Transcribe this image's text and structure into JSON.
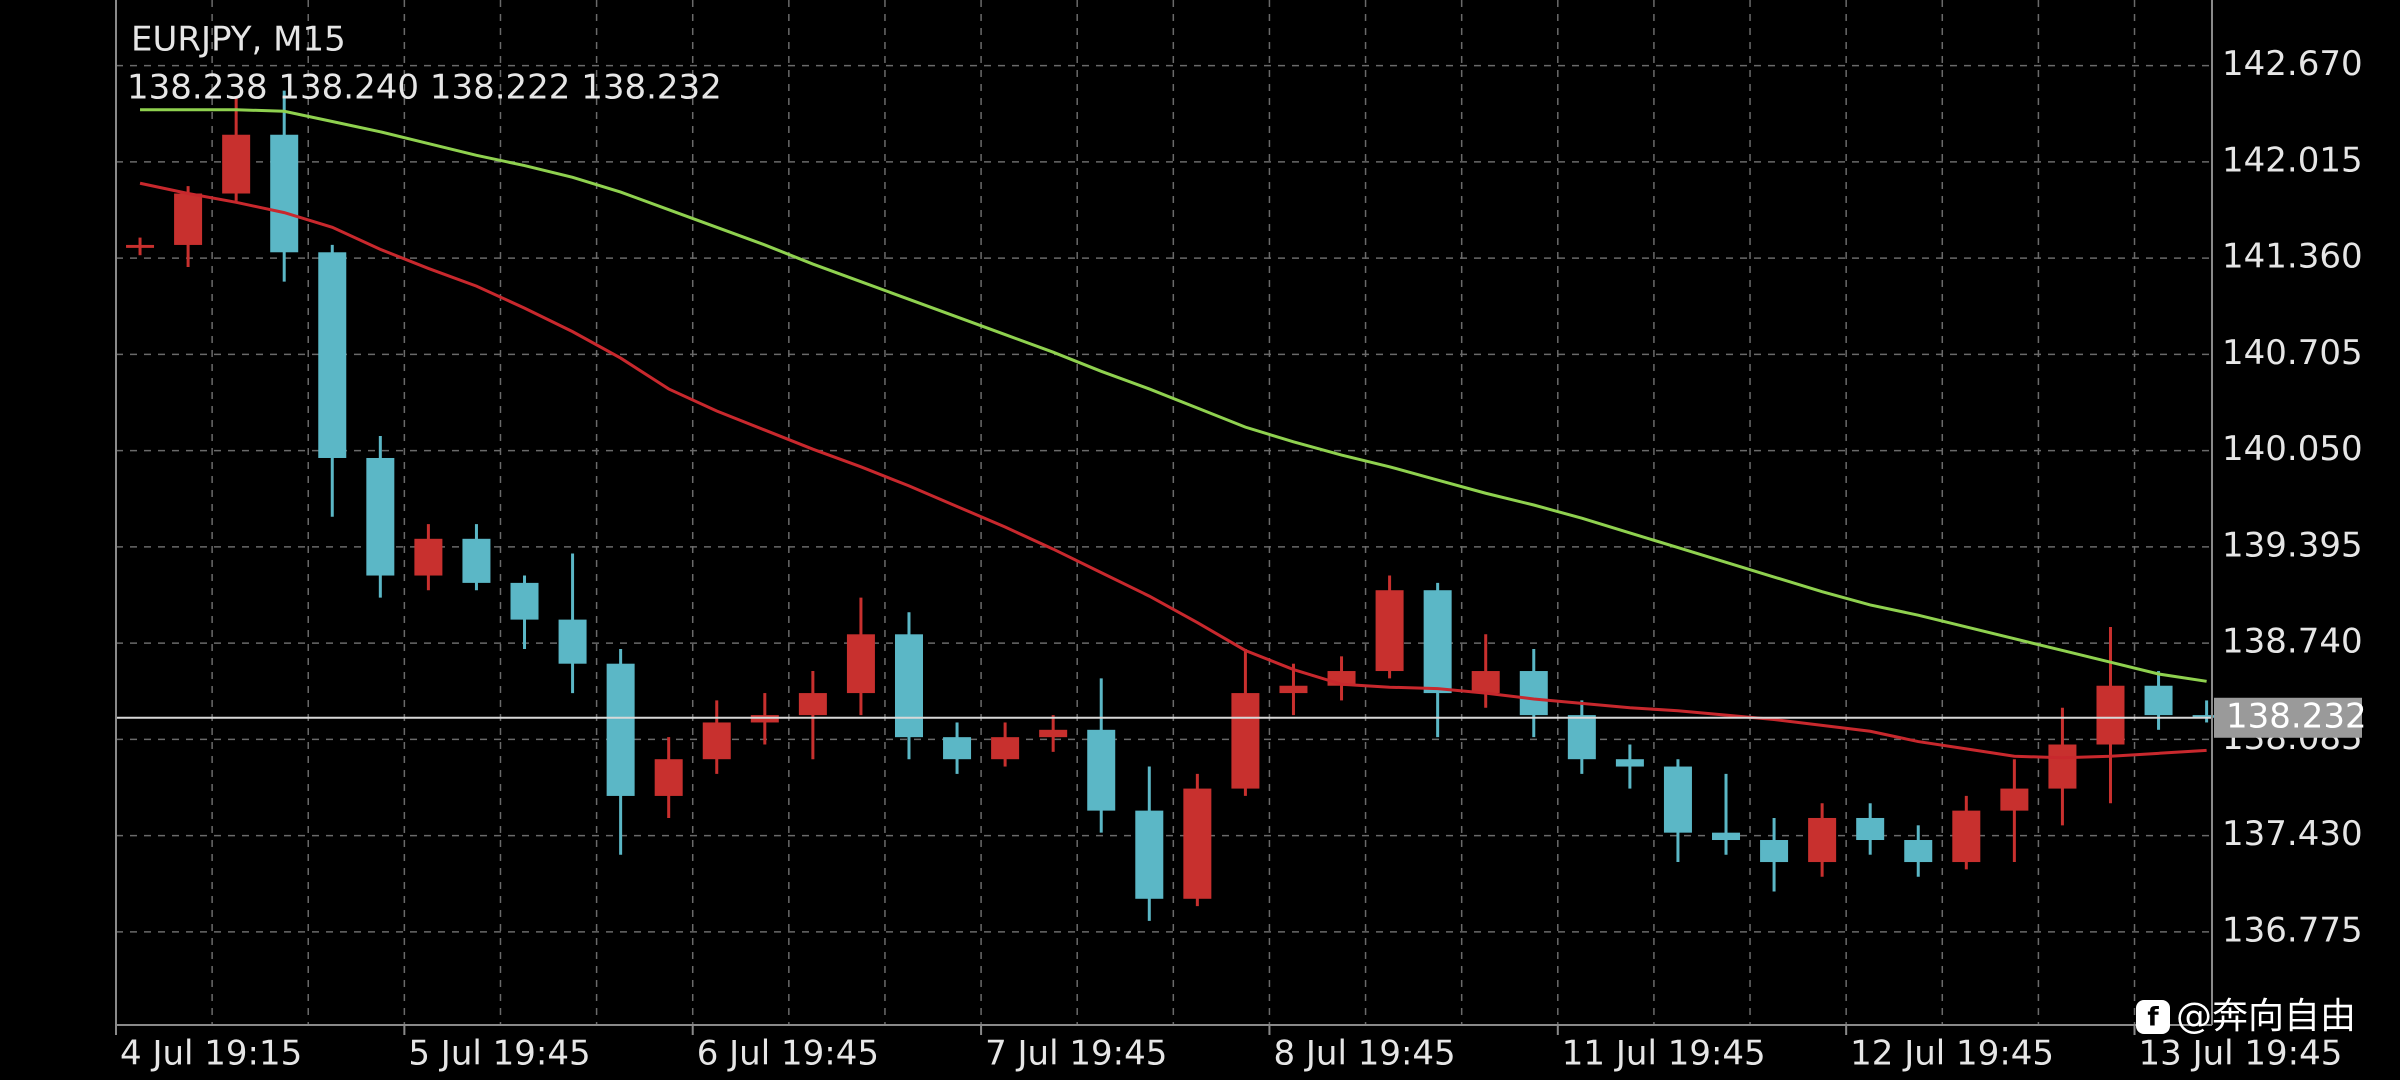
{
  "chart_data": {
    "type": "candlestick",
    "title": "EURJPY, M15",
    "ohlc_label": "138.238 138.240 138.222 138.232",
    "categories": [
      "4 Jul 19:15",
      null,
      null,
      null,
      null,
      null,
      "5 Jul 19:45",
      null,
      null,
      null,
      null,
      null,
      "6 Jul 19:45",
      null,
      null,
      null,
      null,
      null,
      "7 Jul 19:45",
      null,
      null,
      null,
      null,
      null,
      "8 Jul 19:45",
      null,
      null,
      null,
      null,
      null,
      "11 Jul 19:45",
      null,
      null,
      null,
      null,
      null,
      "12 Jul 19:45",
      null,
      null,
      null,
      null,
      null,
      "13 Jul 19:45",
      null
    ],
    "open": [
      141.43,
      141.45,
      141.8,
      142.2,
      141.4,
      140.0,
      139.2,
      139.45,
      139.15,
      138.9,
      138.6,
      137.7,
      137.95,
      138.2,
      138.25,
      138.4,
      138.8,
      138.1,
      137.95,
      138.1,
      138.15,
      137.6,
      137.0,
      137.75,
      138.4,
      138.45,
      138.55,
      139.1,
      138.4,
      138.55,
      138.25,
      137.95,
      137.9,
      137.45,
      137.4,
      137.25,
      137.55,
      137.4,
      137.25,
      137.6,
      137.75,
      138.05,
      138.45,
      138.25
    ],
    "high": [
      141.5,
      141.85,
      142.45,
      142.5,
      141.45,
      140.15,
      139.55,
      139.55,
      139.2,
      139.35,
      138.7,
      138.1,
      138.35,
      138.4,
      138.55,
      139.05,
      138.95,
      138.2,
      138.2,
      138.25,
      138.5,
      137.9,
      137.85,
      138.7,
      138.6,
      138.65,
      139.2,
      139.15,
      138.8,
      138.7,
      138.35,
      138.05,
      137.95,
      137.85,
      137.55,
      137.65,
      137.65,
      137.5,
      137.7,
      137.95,
      138.3,
      138.85,
      138.55,
      138.35
    ],
    "low": [
      141.38,
      141.3,
      141.75,
      141.2,
      139.6,
      139.05,
      139.1,
      139.1,
      138.7,
      138.4,
      137.3,
      137.55,
      137.85,
      138.05,
      137.95,
      138.25,
      137.95,
      137.85,
      137.9,
      138.0,
      137.45,
      136.85,
      136.95,
      137.7,
      138.25,
      138.35,
      138.5,
      138.1,
      138.3,
      138.1,
      137.85,
      137.75,
      137.25,
      137.3,
      137.05,
      137.15,
      137.3,
      137.15,
      137.2,
      137.25,
      137.5,
      137.65,
      138.15,
      138.2
    ],
    "close": [
      141.45,
      141.8,
      142.2,
      141.4,
      140.0,
      139.2,
      139.45,
      139.15,
      138.9,
      138.6,
      137.7,
      137.95,
      138.2,
      138.25,
      138.4,
      138.8,
      138.1,
      137.95,
      138.1,
      138.15,
      137.6,
      137.0,
      137.75,
      138.4,
      138.45,
      138.55,
      139.1,
      138.4,
      138.55,
      138.25,
      137.95,
      137.9,
      137.45,
      137.4,
      137.25,
      137.55,
      137.4,
      137.25,
      137.6,
      137.75,
      138.05,
      138.45,
      138.25,
      138.232
    ],
    "up_color": "#c8302e",
    "down_color": "#5bb7c6",
    "lines": [
      {
        "color": "#8fd14f",
        "values": [
          142.37,
          142.37,
          142.37,
          142.36,
          142.29,
          142.22,
          142.14,
          142.06,
          141.99,
          141.91,
          141.81,
          141.69,
          141.57,
          141.45,
          141.32,
          141.2,
          141.08,
          140.96,
          140.84,
          140.72,
          140.59,
          140.47,
          140.34,
          140.21,
          140.11,
          140.02,
          139.94,
          139.85,
          139.76,
          139.68,
          139.59,
          139.49,
          139.39,
          139.29,
          139.19,
          139.09,
          139.0,
          138.93,
          138.85,
          138.77,
          138.69,
          138.61,
          138.53,
          138.48
        ]
      },
      {
        "color": "#c8282d",
        "values": [
          141.87,
          141.8,
          141.74,
          141.67,
          141.57,
          141.42,
          141.29,
          141.17,
          141.02,
          140.86,
          140.68,
          140.47,
          140.32,
          140.19,
          140.06,
          139.94,
          139.81,
          139.67,
          139.53,
          139.38,
          139.22,
          139.06,
          138.88,
          138.69,
          138.56,
          138.46,
          138.44,
          138.43,
          138.4,
          138.36,
          138.33,
          138.3,
          138.28,
          138.25,
          138.22,
          138.18,
          138.14,
          138.07,
          138.02,
          137.97,
          137.96,
          137.97,
          137.99,
          138.01
        ]
      }
    ],
    "ylim": [
      136.141,
      143.117
    ],
    "yticks": [
      {
        "value": 142.67,
        "label": "142.670"
      },
      142.015,
      {
        "value": 141.36,
        "label": "141.360"
      },
      140.705,
      {
        "value": 140.05,
        "label": "140.050"
      },
      139.395,
      {
        "value": 138.74,
        "label": "138.740"
      },
      138.085,
      {
        "value": 137.43,
        "label": "137.430"
      },
      136.775
    ],
    "current_price": 138.232,
    "grid": true,
    "watermark": "@奔向自由"
  }
}
